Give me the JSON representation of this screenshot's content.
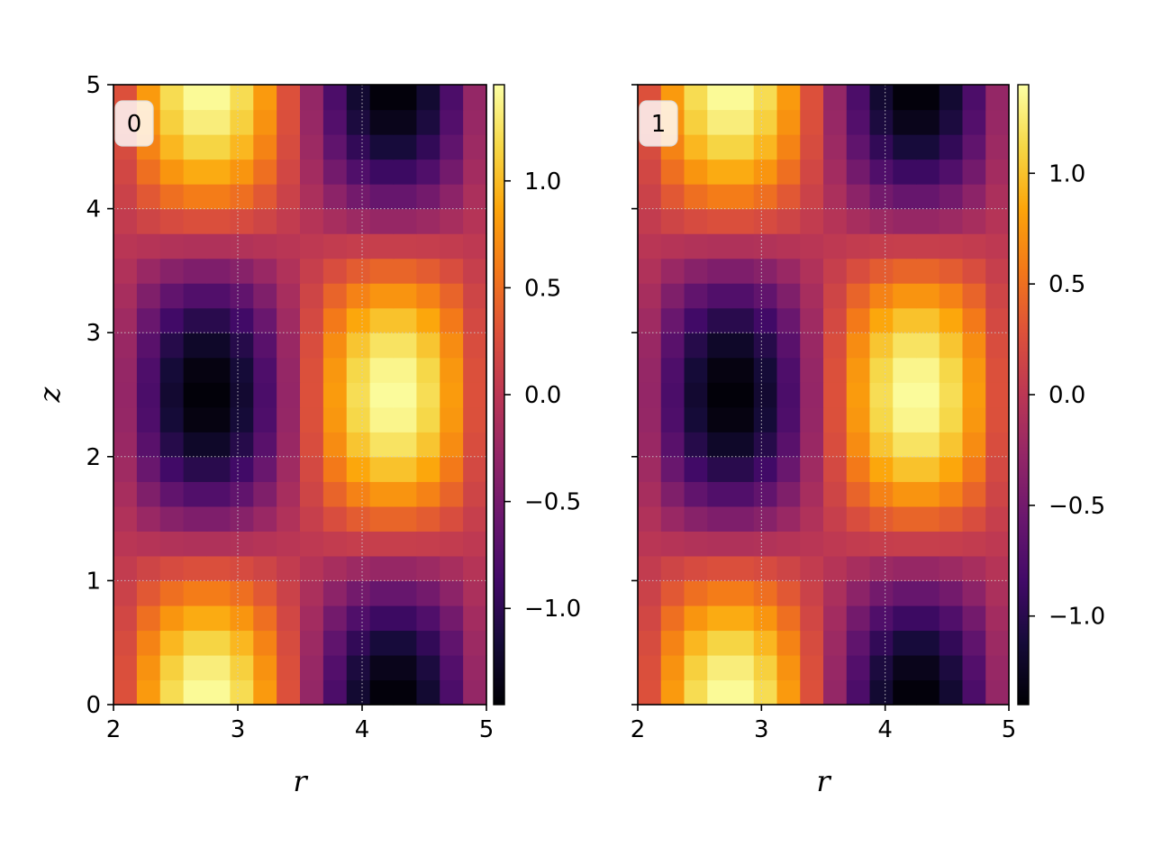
{
  "chart_data": [
    {
      "type": "heatmap",
      "panel_label": "0",
      "xlabel": "r",
      "ylabel": "z",
      "xlim": [
        2,
        5
      ],
      "ylim": [
        0,
        5
      ],
      "x_ticks": [
        2,
        3,
        4,
        5
      ],
      "y_ticks": [
        0,
        1,
        2,
        3,
        4,
        5
      ],
      "x_tick_labels": [
        "2",
        "3",
        "4",
        "5"
      ],
      "y_tick_labels": [
        "0",
        "1",
        "2",
        "3",
        "4",
        "5"
      ],
      "grid": true,
      "colormap": "inferno",
      "field": "f(r,z) ≈ 1.45·sin(π·(r−2)/1.5)·cos(π·z/2.5)",
      "grid_cells": {
        "nr": 16,
        "nz": 25
      },
      "peak_abs": 1.45,
      "colorbar": {
        "min": -1.45,
        "max": 1.45,
        "ticks": [
          -1.0,
          -0.5,
          0.0,
          0.5,
          1.0
        ],
        "tick_labels": [
          "−1.0",
          "−0.5",
          "0.0",
          "0.5",
          "1.0"
        ]
      }
    },
    {
      "type": "heatmap",
      "panel_label": "1",
      "xlabel": "r",
      "ylabel": "",
      "xlim": [
        2,
        5
      ],
      "ylim": [
        0,
        5
      ],
      "x_ticks": [
        2,
        3,
        4,
        5
      ],
      "y_ticks": [
        0,
        1,
        2,
        3,
        4,
        5
      ],
      "x_tick_labels": [
        "2",
        "3",
        "4",
        "5"
      ],
      "y_tick_labels": [],
      "grid": true,
      "colormap": "inferno",
      "field": "f(r,z) ≈ 1.40·sin(π·(r−2)/1.5)·cos(π·z/2.5)",
      "grid_cells": {
        "nr": 16,
        "nz": 25
      },
      "peak_abs": 1.4,
      "colorbar": {
        "min": -1.4,
        "max": 1.4,
        "ticks": [
          -1.0,
          -0.5,
          0.0,
          0.5,
          1.0
        ],
        "tick_labels": [
          "−1.0",
          "−0.5",
          "0.0",
          "0.5",
          "1.0"
        ]
      }
    }
  ]
}
